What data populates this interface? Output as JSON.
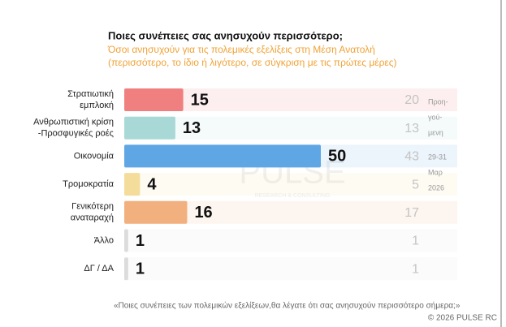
{
  "chart_data": {
    "type": "bar",
    "title": "Ποιες συνέπειες σας ανησυχούν περισσότερο;",
    "subtitle": [
      "Όσοι ανησυχούν για τις πολεμικές εξελίξεις στη Μέση Ανατολή",
      "(περισσότερο, το ίδιο ή λιγότερο, σε σύγκριση με τις πρώτες μέρες)"
    ],
    "categories": [
      [
        "Στρατιωτική",
        "εμπλοκή"
      ],
      [
        "Ανθρωπιστική κρίση",
        "-Προσφυγικές ροές"
      ],
      [
        "Οικονομία"
      ],
      [
        "Τρομοκρατία"
      ],
      [
        "Γενικότερη",
        "αναταραχή"
      ],
      [
        "Άλλο"
      ],
      [
        "ΔΓ / ΔΑ"
      ]
    ],
    "series": [
      {
        "colors": [
          "#f07f7f",
          "#a9d9d6",
          "#5fa6e4",
          "#f4dc9a",
          "#f1b07e",
          "#dcdcdc",
          "#dcdcdc"
        ],
        "values": [
          15,
          13,
          50,
          4,
          16,
          1,
          1
        ]
      },
      {
        "color": "#c4c4c4",
        "values": [
          20,
          13,
          43,
          5,
          17,
          1,
          1
        ]
      }
    ],
    "side_note": [
      "Προη-",
      "γού-",
      "μενη",
      "29-31",
      "Μαρ",
      "2026"
    ],
    "watermark": [
      "PULSE",
      "RESEARCH & CONSULTING"
    ],
    "footnote": "«Ποιες συνέπειες των πολεμικών εξελίξεων,θα λέγατε ότι σας ανησυχούν περισσότερο σήμερα;»",
    "copyright": "© 2026  PULSE RC"
  }
}
